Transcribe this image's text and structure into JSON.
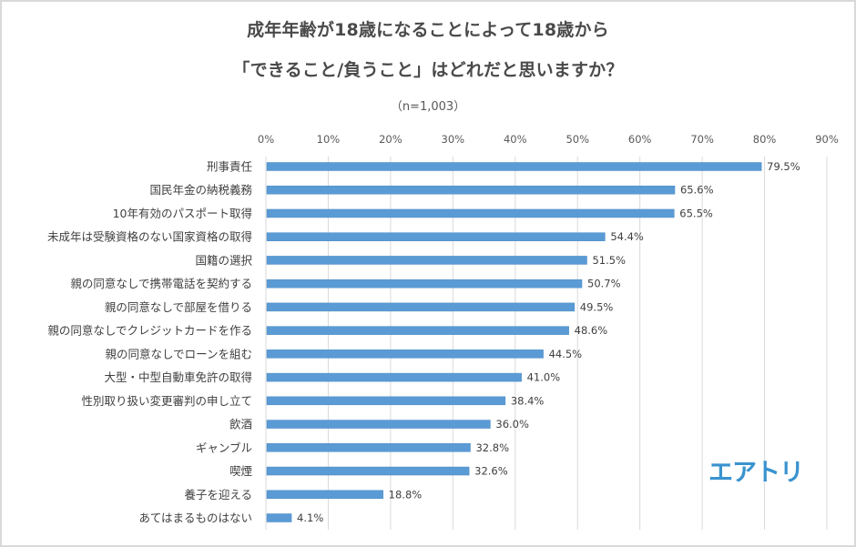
{
  "chart_data": {
    "type": "bar",
    "orientation": "horizontal",
    "title": "成年年齢が18歳になることによって18歳から",
    "title_line2": "「できること/負うこと」はどれだと思いますか？",
    "subtitle": "（n=1,003）",
    "xlabel": "",
    "ylabel": "",
    "xlim": [
      0,
      90
    ],
    "x_ticks": [
      0,
      10,
      20,
      30,
      40,
      50,
      60,
      70,
      80,
      90
    ],
    "x_tick_labels": [
      "0%",
      "10%",
      "20%",
      "30%",
      "40%",
      "50%",
      "60%",
      "70%",
      "80%",
      "90%"
    ],
    "x_axis_position": "top",
    "grid": true,
    "legend": "none",
    "bar_color": "#5b9bd5",
    "categories": [
      "刑事責任",
      "国民年金の納税義務",
      "10年有効のパスポート取得",
      "未成年は受験資格のない国家資格の取得",
      "国籍の選択",
      "親の同意なしで携帯電話を契約する",
      "親の同意なしで部屋を借りる",
      "親の同意なしでクレジットカードを作る",
      "親の同意なしでローンを組む",
      "大型・中型自動車免許の取得",
      "性別取り扱い変更審判の申し立て",
      "飲酒",
      "ギャンブル",
      "喫煙",
      "養子を迎える",
      "あてはまるものはない"
    ],
    "values": [
      79.5,
      65.6,
      65.5,
      54.4,
      51.5,
      50.7,
      49.5,
      48.6,
      44.5,
      41.0,
      38.4,
      36.0,
      32.8,
      32.6,
      18.8,
      4.1
    ],
    "value_labels": [
      "79.5%",
      "65.6%",
      "65.5%",
      "54.4%",
      "51.5%",
      "50.7%",
      "49.5%",
      "48.6%",
      "44.5%",
      "41.0%",
      "38.4%",
      "36.0%",
      "32.8%",
      "32.6%",
      "18.8%",
      "4.1%"
    ]
  },
  "logo": {
    "text": "エアトリ",
    "color": "#3a93cf"
  }
}
